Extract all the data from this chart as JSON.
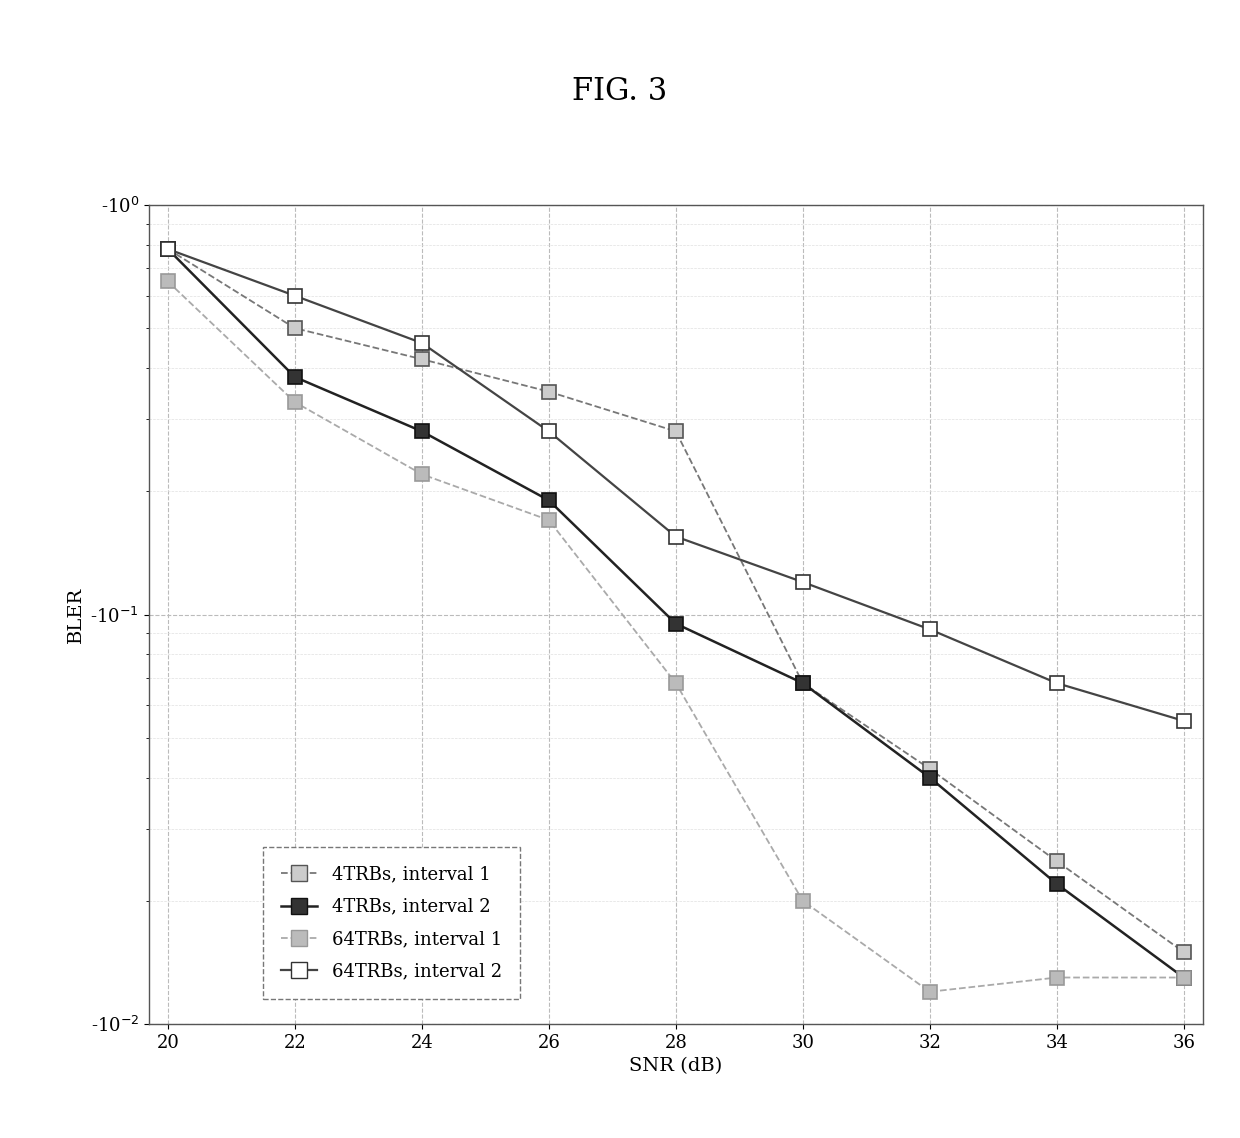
{
  "title": "FIG. 3",
  "xlabel": "SNR (dB)",
  "ylabel": "BLER",
  "xmin": 20,
  "xmax": 36,
  "ymin": 0.01,
  "ymax": 1.0,
  "snr": [
    20,
    22,
    24,
    26,
    28,
    30,
    32,
    34,
    36
  ],
  "series": [
    {
      "label": "4TRBs, interval 1",
      "color": "#777777",
      "linestyle": "dashed",
      "linewidth": 1.3,
      "markersize": 10,
      "markerfacecolor": "#cccccc",
      "markeredgecolor": "#555555",
      "values": [
        0.78,
        0.5,
        0.42,
        0.35,
        0.28,
        0.068,
        0.042,
        0.025,
        0.015
      ]
    },
    {
      "label": "4TRBs, interval 2",
      "color": "#222222",
      "linestyle": "solid",
      "linewidth": 1.8,
      "markersize": 10,
      "markerfacecolor": "#333333",
      "markeredgecolor": "#111111",
      "values": [
        0.78,
        0.38,
        0.28,
        0.19,
        0.095,
        0.068,
        0.04,
        0.022,
        0.013
      ]
    },
    {
      "label": "64TRBs, interval 1",
      "color": "#aaaaaa",
      "linestyle": "dashed",
      "linewidth": 1.3,
      "markersize": 10,
      "markerfacecolor": "#bbbbbb",
      "markeredgecolor": "#999999",
      "values": [
        0.65,
        0.33,
        0.22,
        0.17,
        0.068,
        0.02,
        0.012,
        0.013,
        0.013
      ]
    },
    {
      "label": "64TRBs, interval 2",
      "color": "#444444",
      "linestyle": "solid",
      "linewidth": 1.6,
      "markersize": 10,
      "markerfacecolor": "#ffffff",
      "markeredgecolor": "#333333",
      "values": [
        0.78,
        0.6,
        0.46,
        0.28,
        0.155,
        0.12,
        0.092,
        0.068,
        0.055
      ]
    }
  ],
  "ytick_positions": [
    1.0,
    0.1,
    0.01
  ],
  "ytick_labels": [
    "-10$^{0}$",
    "-10$^{-1}$",
    "-10$^{-2}$"
  ],
  "background_color": "#ffffff",
  "grid_major_color": "#bbbbbb",
  "grid_minor_color": "#dddddd",
  "title_fontsize": 22,
  "axis_label_fontsize": 14,
  "tick_fontsize": 13,
  "legend_fontsize": 13
}
